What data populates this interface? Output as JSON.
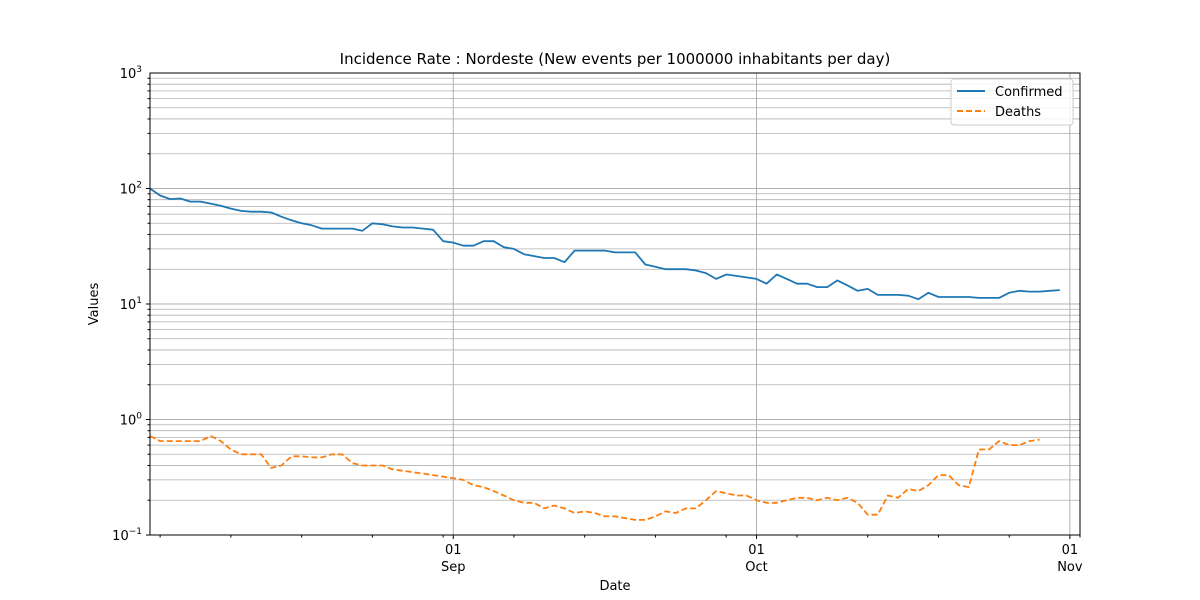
{
  "chart_data": {
    "type": "line",
    "title": "Incidence Rate : Nordeste  (New events per 1000000 inhabitants per day)",
    "xlabel": "Date",
    "ylabel": "Values",
    "yscale": "log",
    "ylim": [
      0.1,
      1000
    ],
    "xlim": [
      "2020-08-02",
      "2020-11-02"
    ],
    "grid": true,
    "legend_position": "top-right",
    "x_ticks": [
      {
        "date": "2020-09-01",
        "day": "01",
        "month": "Sep"
      },
      {
        "date": "2020-10-01",
        "day": "01",
        "month": "Oct"
      },
      {
        "date": "2020-11-01",
        "day": "01",
        "month": "Nov"
      }
    ],
    "y_ticks": [
      {
        "value": 0.1,
        "base": "10",
        "exp": "−1"
      },
      {
        "value": 1,
        "base": "10",
        "exp": "0"
      },
      {
        "value": 10,
        "base": "10",
        "exp": "1"
      },
      {
        "value": 100,
        "base": "10",
        "exp": "2"
      },
      {
        "value": 1000,
        "base": "10",
        "exp": "3"
      }
    ],
    "x_start": "2020-08-02",
    "series": [
      {
        "name": "Confirmed",
        "color": "#1f77b4",
        "dash": "solid",
        "values": [
          100,
          87,
          81,
          82,
          77,
          77,
          74,
          71,
          67,
          64,
          63,
          63,
          62,
          57,
          53,
          50,
          48,
          45,
          45,
          45,
          45,
          43,
          50,
          49,
          47,
          46,
          46,
          45,
          44,
          35,
          34,
          32,
          32,
          35,
          35,
          31,
          30,
          27,
          26,
          25,
          25,
          23,
          29,
          29,
          29,
          29,
          28,
          28,
          28,
          22,
          21,
          20,
          20,
          20,
          19.5,
          18.5,
          16.5,
          18,
          17.5,
          17,
          16.5,
          15,
          18,
          16.5,
          15,
          15,
          14,
          14,
          16,
          14.5,
          13,
          13.5,
          12,
          12,
          12,
          11.8,
          11,
          12.5,
          11.5,
          11.5,
          11.5,
          11.5,
          11.3,
          11.3,
          11.3,
          12.5,
          13,
          12.8,
          12.8,
          13,
          13.2
        ]
      },
      {
        "name": "Deaths",
        "color": "#ff7f0e",
        "dash": "dashed",
        "values": [
          0.72,
          0.65,
          0.65,
          0.65,
          0.65,
          0.65,
          0.72,
          0.65,
          0.55,
          0.5,
          0.5,
          0.5,
          0.38,
          0.4,
          0.48,
          0.48,
          0.47,
          0.47,
          0.5,
          0.5,
          0.42,
          0.4,
          0.4,
          0.4,
          0.37,
          0.36,
          0.35,
          0.34,
          0.33,
          0.32,
          0.31,
          0.3,
          0.27,
          0.26,
          0.24,
          0.22,
          0.2,
          0.19,
          0.19,
          0.17,
          0.18,
          0.17,
          0.155,
          0.16,
          0.155,
          0.145,
          0.145,
          0.14,
          0.135,
          0.135,
          0.145,
          0.16,
          0.155,
          0.17,
          0.17,
          0.2,
          0.24,
          0.23,
          0.22,
          0.22,
          0.2,
          0.19,
          0.19,
          0.2,
          0.21,
          0.21,
          0.2,
          0.21,
          0.2,
          0.21,
          0.19,
          0.15,
          0.15,
          0.22,
          0.21,
          0.25,
          0.24,
          0.27,
          0.33,
          0.33,
          0.27,
          0.26,
          0.55,
          0.55,
          0.65,
          0.6,
          0.6,
          0.65,
          0.67
        ]
      }
    ]
  }
}
